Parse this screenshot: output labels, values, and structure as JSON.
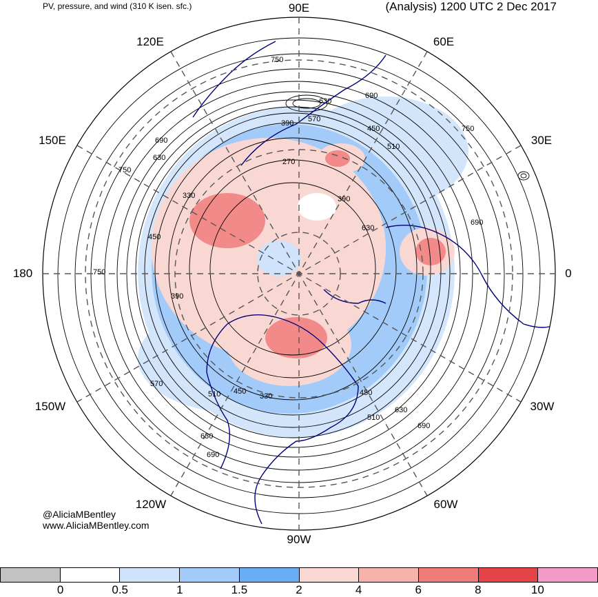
{
  "header": {
    "title_left": "PV, pressure, and wind (310 K isen. sfc.)",
    "title_right": "(Analysis) 1200 UTC 2 Dec 2017"
  },
  "longitude_labels": [
    "90E",
    "60E",
    "30E",
    "0",
    "30W",
    "60W",
    "90W",
    "120W",
    "150W",
    "180",
    "150E",
    "120E"
  ],
  "contour_labels": [
    "750",
    "690",
    "630",
    "570",
    "510",
    "450",
    "390",
    "330",
    "270"
  ],
  "credit": {
    "line1": "@AliciaMBentley",
    "line2": "www.AliciaMBentley.com"
  },
  "colorbar": {
    "colors": [
      "#c3c3c3",
      "#ffffff",
      "#cfe3fb",
      "#a2cbf9",
      "#6aaff5",
      "#f9d8d3",
      "#f6b3ac",
      "#f07c7a",
      "#e34448",
      "#f29bc9"
    ],
    "labels": [
      "0",
      "0.5",
      "1",
      "1.5",
      "2",
      "4",
      "6",
      "8",
      "10"
    ]
  }
}
